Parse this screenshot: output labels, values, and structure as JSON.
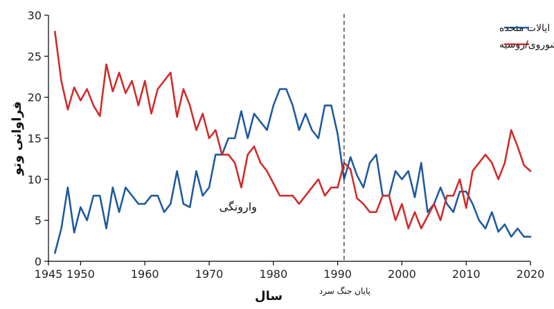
{
  "chart_data": {
    "type": "line",
    "xlabel": "سال",
    "ylabel": "فراوانی وتو",
    "xlim": [
      1945,
      2020
    ],
    "ylim": [
      0,
      30
    ],
    "xticks": [
      1945,
      1950,
      1960,
      1970,
      1980,
      1990,
      2000,
      2010,
      2020
    ],
    "yticks": [
      0,
      5,
      10,
      15,
      20,
      25,
      30
    ],
    "grid": false,
    "legend_position": "top-right",
    "series": [
      {
        "name": "ایالات متحده",
        "color": "#1f5a9e",
        "points": [
          [
            1946,
            1
          ],
          [
            1947,
            4
          ],
          [
            1948,
            9
          ],
          [
            1949,
            3.5
          ],
          [
            1950,
            6.6
          ],
          [
            1951,
            5
          ],
          [
            1952,
            8
          ],
          [
            1953,
            8
          ],
          [
            1954,
            4
          ],
          [
            1955,
            9
          ],
          [
            1956,
            6
          ],
          [
            1957,
            9
          ],
          [
            1958,
            8
          ],
          [
            1959,
            7
          ],
          [
            1960,
            7
          ],
          [
            1961,
            8
          ],
          [
            1962,
            8
          ],
          [
            1963,
            6
          ],
          [
            1964,
            7
          ],
          [
            1965,
            11
          ],
          [
            1966,
            7
          ],
          [
            1967,
            6.6
          ],
          [
            1968,
            11
          ],
          [
            1969,
            8
          ],
          [
            1970,
            9
          ],
          [
            1971,
            13
          ],
          [
            1972,
            13
          ],
          [
            1973,
            15
          ],
          [
            1974,
            15
          ],
          [
            1975,
            18.3
          ],
          [
            1976,
            15
          ],
          [
            1977,
            18
          ],
          [
            1978,
            17
          ],
          [
            1979,
            16
          ],
          [
            1980,
            19
          ],
          [
            1981,
            21
          ],
          [
            1982,
            21
          ],
          [
            1983,
            19
          ],
          [
            1984,
            16
          ],
          [
            1985,
            18
          ],
          [
            1986,
            16
          ],
          [
            1987,
            15
          ],
          [
            1988,
            19
          ],
          [
            1989,
            19
          ],
          [
            1990,
            15.5
          ],
          [
            1991,
            10
          ],
          [
            1992,
            12.7
          ],
          [
            1993,
            10.5
          ],
          [
            1994,
            9
          ],
          [
            1995,
            12
          ],
          [
            1996,
            13
          ],
          [
            1997,
            8
          ],
          [
            1998,
            8
          ],
          [
            1999,
            11
          ],
          [
            2000,
            10
          ],
          [
            2001,
            11
          ],
          [
            2002,
            7.8
          ],
          [
            2003,
            12
          ],
          [
            2004,
            6
          ],
          [
            2005,
            7
          ],
          [
            2006,
            9
          ],
          [
            2007,
            7
          ],
          [
            2008,
            6
          ],
          [
            2009,
            8.5
          ],
          [
            2010,
            8.5
          ],
          [
            2011,
            7
          ],
          [
            2012,
            5
          ],
          [
            2013,
            4
          ],
          [
            2014,
            6
          ],
          [
            2015,
            3.6
          ],
          [
            2016,
            4.5
          ],
          [
            2017,
            3
          ],
          [
            2018,
            4
          ],
          [
            2019,
            3
          ],
          [
            2020,
            3
          ]
        ]
      },
      {
        "name": "اتحاد جماهیر شوروی/روسیه",
        "color": "#d12b2b",
        "points": [
          [
            1946,
            28
          ],
          [
            1947,
            22
          ],
          [
            1948,
            18.5
          ],
          [
            1949,
            21.2
          ],
          [
            1950,
            19.6
          ],
          [
            1951,
            21
          ],
          [
            1952,
            19
          ],
          [
            1953,
            17.7
          ],
          [
            1954,
            24
          ],
          [
            1955,
            20.7
          ],
          [
            1956,
            23
          ],
          [
            1957,
            20.5
          ],
          [
            1958,
            22
          ],
          [
            1959,
            19
          ],
          [
            1960,
            22
          ],
          [
            1961,
            18
          ],
          [
            1962,
            21
          ],
          [
            1963,
            22
          ],
          [
            1964,
            23
          ],
          [
            1965,
            17.6
          ],
          [
            1966,
            21
          ],
          [
            1967,
            19
          ],
          [
            1968,
            16
          ],
          [
            1969,
            18
          ],
          [
            1970,
            15
          ],
          [
            1971,
            16
          ],
          [
            1972,
            13
          ],
          [
            1973,
            13
          ],
          [
            1974,
            12
          ],
          [
            1975,
            9
          ],
          [
            1976,
            13
          ],
          [
            1977,
            14
          ],
          [
            1978,
            12
          ],
          [
            1979,
            11
          ],
          [
            1980,
            9.5
          ],
          [
            1981,
            8
          ],
          [
            1982,
            8
          ],
          [
            1983,
            8
          ],
          [
            1984,
            7
          ],
          [
            1985,
            8
          ],
          [
            1986,
            9
          ],
          [
            1987,
            10
          ],
          [
            1988,
            8
          ],
          [
            1989,
            9
          ],
          [
            1990,
            9
          ],
          [
            1991,
            12
          ],
          [
            1992,
            11.2
          ],
          [
            1993,
            7.7
          ],
          [
            1994,
            7
          ],
          [
            1995,
            6
          ],
          [
            1996,
            6
          ],
          [
            1997,
            8
          ],
          [
            1998,
            8
          ],
          [
            1999,
            5
          ],
          [
            2000,
            7
          ],
          [
            2001,
            4
          ],
          [
            2002,
            6
          ],
          [
            2003,
            4
          ],
          [
            2004,
            5.5
          ],
          [
            2005,
            7
          ],
          [
            2006,
            5
          ],
          [
            2007,
            8
          ],
          [
            2008,
            8
          ],
          [
            2009,
            10
          ],
          [
            2010,
            6.5
          ],
          [
            2011,
            11
          ],
          [
            2012,
            12
          ],
          [
            2013,
            13
          ],
          [
            2014,
            12
          ],
          [
            2015,
            10
          ],
          [
            2016,
            12
          ],
          [
            2017,
            16
          ],
          [
            2018,
            14
          ],
          [
            2019,
            11.7
          ],
          [
            2020,
            11
          ]
        ]
      }
    ],
    "annotations": [
      {
        "text": "وارونگی",
        "x": 1974.5,
        "y": 6.2
      }
    ],
    "vlines": [
      {
        "x": 1991,
        "label": "پایان جنگ سرد",
        "style": "dashed"
      }
    ]
  }
}
